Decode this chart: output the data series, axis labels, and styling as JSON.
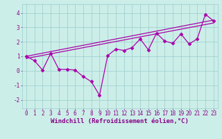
{
  "xlabel": "Windchill (Refroidissement éolien,°C)",
  "x_data": [
    0,
    1,
    2,
    3,
    4,
    5,
    6,
    7,
    8,
    9,
    10,
    11,
    12,
    13,
    14,
    15,
    16,
    17,
    18,
    19,
    20,
    21,
    22,
    23
  ],
  "y_data": [
    1.0,
    0.7,
    0.05,
    1.2,
    0.1,
    0.1,
    0.05,
    -0.4,
    -0.75,
    -1.7,
    1.05,
    1.5,
    1.4,
    1.6,
    2.2,
    1.45,
    2.6,
    2.05,
    1.9,
    2.55,
    1.85,
    2.2,
    3.9,
    3.45
  ],
  "trend1_x": [
    0,
    23
  ],
  "trend1_y": [
    1.0,
    3.5
  ],
  "trend2_x": [
    0,
    23
  ],
  "trend2_y": [
    0.85,
    3.3
  ],
  "line_color": "#aa00aa",
  "marker": "D",
  "markersize": 2.5,
  "xlim": [
    -0.5,
    23.5
  ],
  "ylim": [
    -2.6,
    4.6
  ],
  "yticks": [
    -2,
    -1,
    0,
    1,
    2,
    3,
    4
  ],
  "xticks": [
    0,
    1,
    2,
    3,
    4,
    5,
    6,
    7,
    8,
    9,
    10,
    11,
    12,
    13,
    14,
    15,
    16,
    17,
    18,
    19,
    20,
    21,
    22,
    23
  ],
  "bg_color": "#cceee8",
  "grid_color": "#99cccc",
  "font_color": "#880088",
  "xlabel_fontsize": 6.5,
  "tick_fontsize": 5.5,
  "linewidth": 0.9,
  "trend_linewidth": 0.9
}
